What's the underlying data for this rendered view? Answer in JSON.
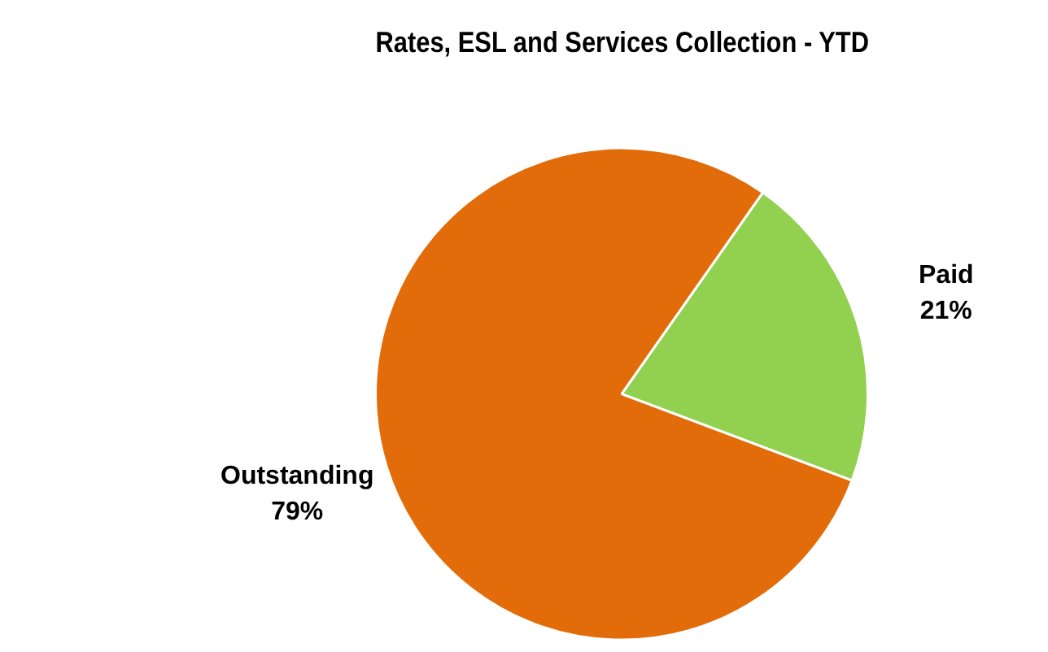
{
  "chart_data": {
    "type": "pie",
    "title": "Rates, ESL and Services Collection - YTD",
    "categories": [
      "Paid",
      "Outstanding"
    ],
    "values": [
      21,
      79
    ],
    "colors": [
      "#92d050",
      "#e36c0a"
    ],
    "value_labels": [
      "21%",
      "79%"
    ],
    "legend": false
  }
}
